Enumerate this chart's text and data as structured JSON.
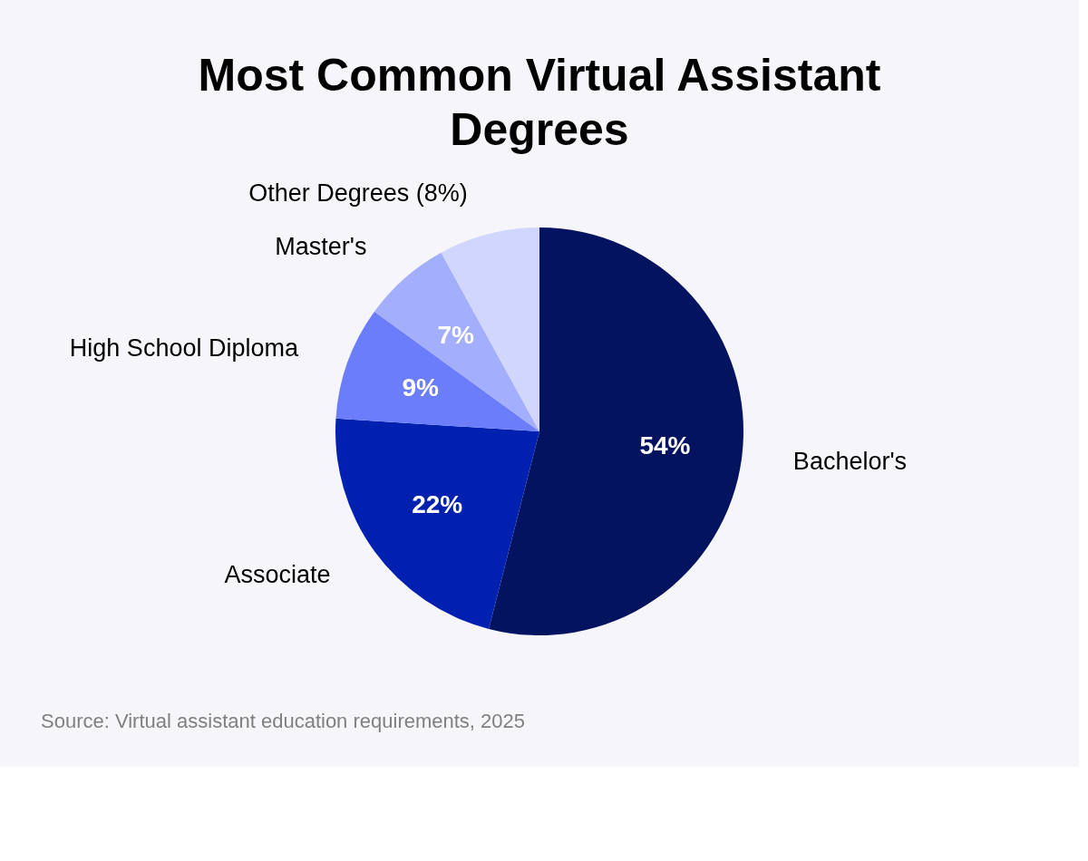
{
  "chart_data": {
    "type": "pie",
    "title": "Most Common Virtual Assistant Degrees",
    "categories": [
      "Bachelor's",
      "Associate",
      "High School Diploma",
      "Master's",
      "Other Degrees (8%)"
    ],
    "values": [
      54,
      22,
      9,
      7,
      8
    ],
    "colors": [
      "#03135f",
      "#0020b0",
      "#6b7dfa",
      "#a3aefc",
      "#d0d6fd"
    ],
    "value_labels": [
      "54%",
      "22%",
      "9%",
      "7%",
      null
    ],
    "legend": false,
    "annotations": [
      "Source:  Virtual assistant education requirements, 2025"
    ]
  }
}
